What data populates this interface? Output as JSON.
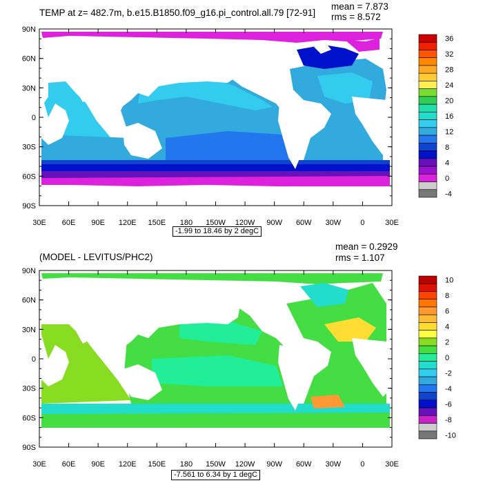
{
  "panels": [
    {
      "title": "TEMP at z= 482.7m, b.e15.B1850.f09_g16.pi_control.all.79 [72-91]",
      "mean_text": "mean = 7.873",
      "rms_text": "rms = 8.572",
      "range_text": "-1.99 to 18.46 by 2 degC",
      "colorbar_labels": [
        "36",
        "32",
        "28",
        "24",
        "20",
        "16",
        "12",
        "8",
        "4",
        "0",
        "-4"
      ]
    },
    {
      "title": "(MODEL - LEVITUS/PHC2)",
      "mean_text": "mean = 0.2929",
      "rms_text": "rms = 1.107",
      "range_text": "-7.561 to 6.34 by 1 degC",
      "colorbar_labels": [
        "10",
        "8",
        "6",
        "4",
        "2",
        "0",
        "-2",
        "-4",
        "-6",
        "-8",
        "-10"
      ]
    }
  ],
  "lat_labels": [
    "90N",
    "60N",
    "30N",
    "0",
    "30S",
    "60S",
    "90S"
  ],
  "lon_labels": [
    "30E",
    "60E",
    "90E",
    "120E",
    "150E",
    "180",
    "150W",
    "120W",
    "90W",
    "60W",
    "30W",
    "0",
    "30E"
  ],
  "colors": {
    "top_colorbar": [
      "#cc0000",
      "#ee2200",
      "#ff5500",
      "#ff8800",
      "#ffaa22",
      "#ffcc33",
      "#ffee55",
      "#77dd33",
      "#33cc55",
      "#22ddaa",
      "#22ddcc",
      "#33ccee",
      "#33aadd",
      "#2277ee",
      "#1144cc",
      "#0011cc",
      "#6611bb",
      "#9911cc",
      "#dd22dd",
      "#cccccc",
      "#777777"
    ],
    "bottom_colorbar": [
      "#bb0000",
      "#dd1100",
      "#ff4400",
      "#ff7700",
      "#ff9933",
      "#ffbb33",
      "#ffdd33",
      "#ffff44",
      "#88dd22",
      "#44dd44",
      "#22ee99",
      "#22ddcc",
      "#33ccee",
      "#33aadd",
      "#2277ee",
      "#1144cc",
      "#0011cc",
      "#6611bb",
      "#cc22cc",
      "#cccccc",
      "#777777"
    ],
    "land": "#ffffff",
    "ocean_top": "#33aadd",
    "ocean_bottom": "#44dd44"
  }
}
